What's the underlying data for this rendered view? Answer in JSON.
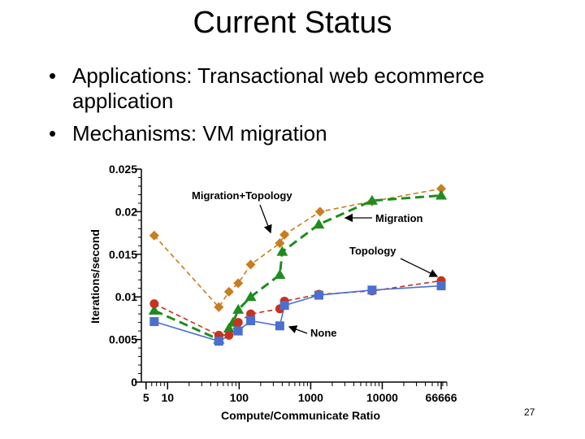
{
  "slide": {
    "title": "Current Status",
    "bullets": [
      "Applications: Transactional web ecommerce application",
      "Mechanisms: VM migration"
    ],
    "page_number": "27"
  },
  "chart_data": {
    "type": "line",
    "xlabel": "Compute/Communicate Ratio",
    "ylabel": "Iterations/second",
    "x_scale": "log",
    "xlim": [
      4.3,
      80000
    ],
    "ylim": [
      0,
      0.025
    ],
    "x_ticks": [
      {
        "value": 5,
        "label": "5"
      },
      {
        "value": 10,
        "label": "10"
      },
      {
        "value": 100,
        "label": "100"
      },
      {
        "value": 1000,
        "label": "1000"
      },
      {
        "value": 10000,
        "label": "10000"
      },
      {
        "value": 66666,
        "label": "66666"
      }
    ],
    "y_ticks": [
      {
        "value": 0,
        "label": "0"
      },
      {
        "value": 0.005,
        "label": "0.005"
      },
      {
        "value": 0.01,
        "label": "0.01"
      },
      {
        "value": 0.015,
        "label": "0.015"
      },
      {
        "value": 0.02,
        "label": "0.02"
      },
      {
        "value": 0.025,
        "label": "0.025"
      }
    ],
    "grid": false,
    "series": [
      {
        "name": "Migration+Topology",
        "color": "#c87d1e",
        "marker": "diamond",
        "dash": "dashed",
        "x": [
          6.5,
          52,
          72,
          97,
          145,
          370,
          430,
          1350,
          7200,
          66666
        ],
        "y": [
          0.0172,
          0.0088,
          0.0106,
          0.0116,
          0.0138,
          0.0163,
          0.0173,
          0.02,
          0.0212,
          0.0227
        ]
      },
      {
        "name": "Migration",
        "color": "#1e8c1e",
        "marker": "triangle",
        "dash": "long-dashed",
        "x": [
          6.5,
          52,
          72,
          82,
          97,
          145,
          370,
          400,
          1300,
          7200,
          66666
        ],
        "y": [
          0.0084,
          0.005,
          0.0063,
          0.007,
          0.0085,
          0.01,
          0.0126,
          0.0153,
          0.0185,
          0.0213,
          0.0219
        ]
      },
      {
        "name": "Topology",
        "color": "#c8321e",
        "marker": "circle",
        "dash": "dashed",
        "x": [
          6.5,
          52,
          72,
          97,
          145,
          370,
          430,
          1300,
          7200,
          66666
        ],
        "y": [
          0.0092,
          0.0055,
          0.0055,
          0.007,
          0.008,
          0.0086,
          0.0095,
          0.0103,
          0.0107,
          0.0119
        ]
      },
      {
        "name": "None",
        "color": "#4a6fd0",
        "marker": "square",
        "dash": "solid",
        "x": [
          6.5,
          52,
          97,
          145,
          370,
          430,
          1300,
          7200,
          66666
        ],
        "y": [
          0.0071,
          0.0048,
          0.006,
          0.0072,
          0.0066,
          0.009,
          0.0102,
          0.0108,
          0.0113
        ]
      }
    ],
    "annotations": [
      {
        "text": "Migration+Topology",
        "target_series": "Migration+Topology"
      },
      {
        "text": "Migration",
        "target_series": "Migration"
      },
      {
        "text": "Topology",
        "target_series": "Topology"
      },
      {
        "text": "None",
        "target_series": "None"
      }
    ]
  }
}
